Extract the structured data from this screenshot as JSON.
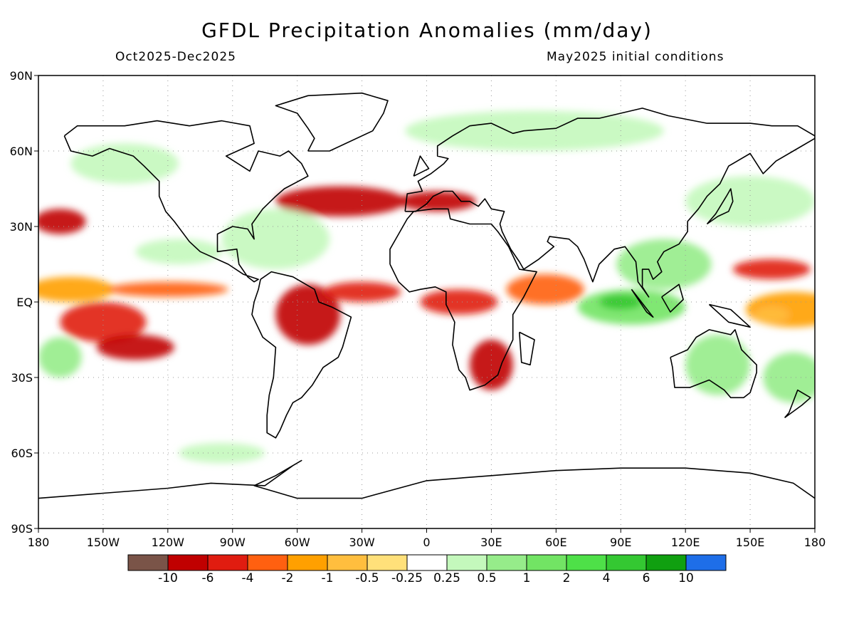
{
  "title": "GFDL Precipitation Anomalies (mm/day)",
  "subtitle_left": "Oct2025-Dec2025",
  "subtitle_right": "May2025 initial conditions",
  "axes": {
    "lat_ticks": [
      "90N",
      "60N",
      "30N",
      "EQ",
      "30S",
      "60S",
      "90S"
    ],
    "lon_ticks": [
      "180",
      "150W",
      "120W",
      "90W",
      "60W",
      "30W",
      "0",
      "30E",
      "60E",
      "90E",
      "120E",
      "150E",
      "180"
    ],
    "lat_range": [
      -90,
      90
    ],
    "lon_range": [
      -180,
      180
    ],
    "grid": "dotted"
  },
  "colorbar": {
    "labels": [
      "-10",
      "-6",
      "-4",
      "-2",
      "-1",
      "-0.5",
      "-0.25",
      "0.25",
      "0.5",
      "1",
      "2",
      "4",
      "6",
      "10"
    ],
    "colors": [
      "#7a5448",
      "#c00000",
      "#e01c10",
      "#ff6010",
      "#ffa000",
      "#ffbe3e",
      "#ffe07a",
      "#ffffff",
      "#c4f8bc",
      "#96ec8a",
      "#72e464",
      "#4ee048",
      "#34c832",
      "#10a010",
      "#1e6ee8"
    ]
  },
  "anomaly_regions": [
    {
      "lon": -165,
      "lat": 5,
      "rx": 20,
      "ry": 5,
      "level": 4
    },
    {
      "lon": -120,
      "lat": 5,
      "rx": 28,
      "ry": 3,
      "level": 3
    },
    {
      "lon": -150,
      "lat": -8,
      "rx": 20,
      "ry": 8,
      "level": 2
    },
    {
      "lon": -135,
      "lat": -18,
      "rx": 18,
      "ry": 5,
      "level": 1
    },
    {
      "lon": -55,
      "lat": -5,
      "rx": 15,
      "ry": 12,
      "level": 1
    },
    {
      "lon": -30,
      "lat": 4,
      "rx": 18,
      "ry": 4,
      "level": 2
    },
    {
      "lon": 15,
      "lat": 0,
      "rx": 18,
      "ry": 5,
      "level": 2
    },
    {
      "lon": 30,
      "lat": -25,
      "rx": 10,
      "ry": 10,
      "level": 1
    },
    {
      "lon": 55,
      "lat": 5,
      "rx": 18,
      "ry": 6,
      "level": 3
    },
    {
      "lon": 170,
      "lat": -3,
      "rx": 22,
      "ry": 7,
      "level": 4
    },
    {
      "lon": 160,
      "lat": -5,
      "rx": 8,
      "ry": 3,
      "level": 5
    },
    {
      "lon": 160,
      "lat": 13,
      "rx": 18,
      "ry": 4,
      "level": 2
    },
    {
      "lon": -40,
      "lat": 40,
      "rx": 30,
      "ry": 6,
      "level": 1
    },
    {
      "lon": 5,
      "lat": 40,
      "rx": 18,
      "ry": 4,
      "level": 1
    },
    {
      "lon": -170,
      "lat": 32,
      "rx": 12,
      "ry": 5,
      "level": 1
    },
    {
      "lon": 95,
      "lat": -2,
      "rx": 25,
      "ry": 7,
      "level": 10
    },
    {
      "lon": 90,
      "lat": 0,
      "rx": 10,
      "ry": 3,
      "level": 12
    },
    {
      "lon": 110,
      "lat": 15,
      "rx": 22,
      "ry": 10,
      "level": 9
    },
    {
      "lon": 135,
      "lat": -25,
      "rx": 15,
      "ry": 12,
      "level": 9
    },
    {
      "lon": 170,
      "lat": -30,
      "rx": 14,
      "ry": 10,
      "level": 9
    },
    {
      "lon": -70,
      "lat": 25,
      "rx": 25,
      "ry": 12,
      "level": 8
    },
    {
      "lon": -170,
      "lat": -22,
      "rx": 10,
      "ry": 8,
      "level": 9
    },
    {
      "lon": 50,
      "lat": 68,
      "rx": 60,
      "ry": 8,
      "level": 8
    },
    {
      "lon": -140,
      "lat": 55,
      "rx": 25,
      "ry": 8,
      "level": 8
    },
    {
      "lon": -115,
      "lat": 20,
      "rx": 20,
      "ry": 5,
      "level": 8
    },
    {
      "lon": -95,
      "lat": -60,
      "rx": 20,
      "ry": 4,
      "level": 8
    },
    {
      "lon": 150,
      "lat": 40,
      "rx": 30,
      "ry": 10,
      "level": 8
    }
  ]
}
